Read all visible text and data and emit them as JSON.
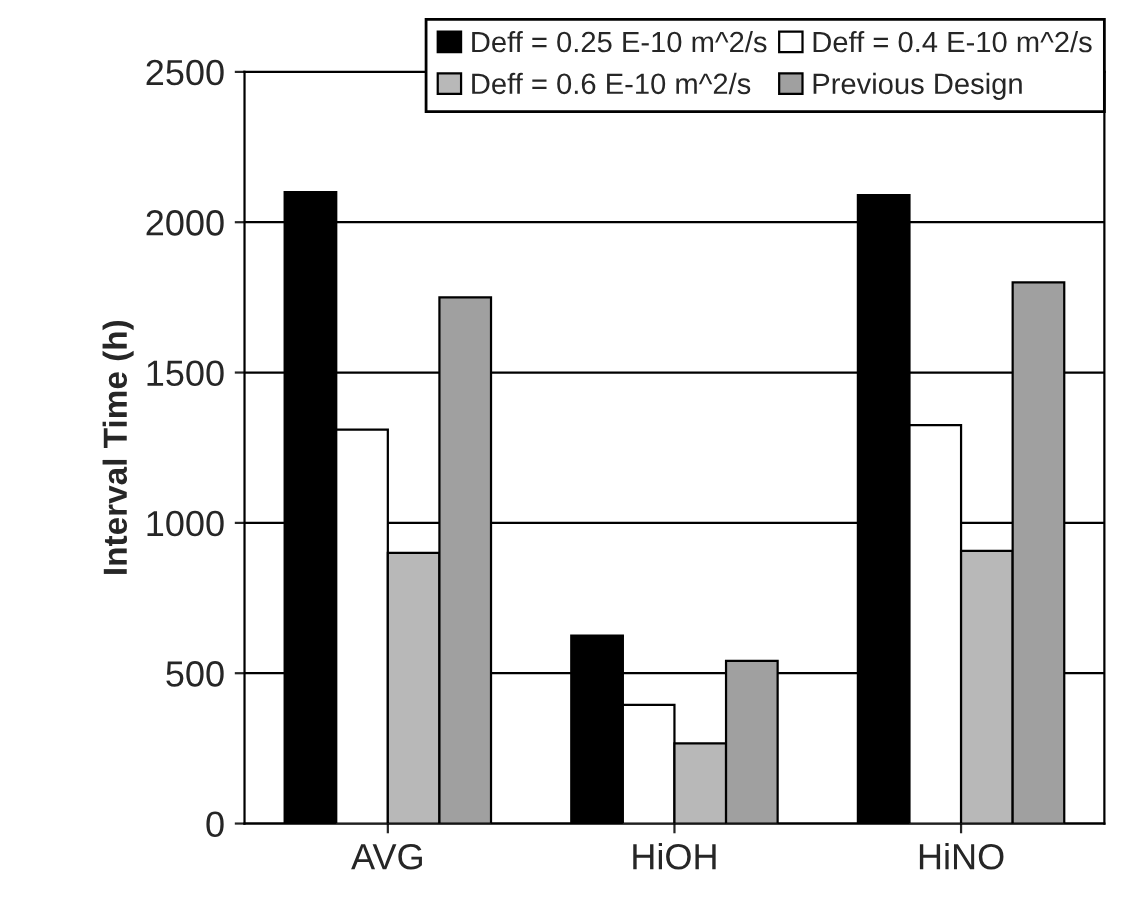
{
  "chart_data": {
    "type": "bar",
    "ylabel": "Interval Time (h)",
    "categories": [
      "AVG",
      "HiOH",
      "HiNO"
    ],
    "series": [
      {
        "name": "Deff = 0.25 E-10 m^2/s",
        "color": "#000000",
        "values": [
          2100,
          625,
          2090
        ]
      },
      {
        "name": "Deff = 0.4 E-10 m^2/s",
        "color": "#ffffff",
        "values": [
          1310,
          395,
          1325
        ]
      },
      {
        "name": "Deff = 0.6 E-10 m^2/s",
        "color": "#b8b8b8",
        "values": [
          900,
          267,
          907
        ]
      },
      {
        "name": "Previous Design",
        "color": "#a0a0a0",
        "values": [
          1750,
          541,
          1800
        ]
      }
    ],
    "ylim": [
      0,
      2500
    ],
    "yticks": [
      0,
      500,
      1000,
      1500,
      2000,
      2500
    ],
    "grid": "y",
    "legend": "top right"
  }
}
